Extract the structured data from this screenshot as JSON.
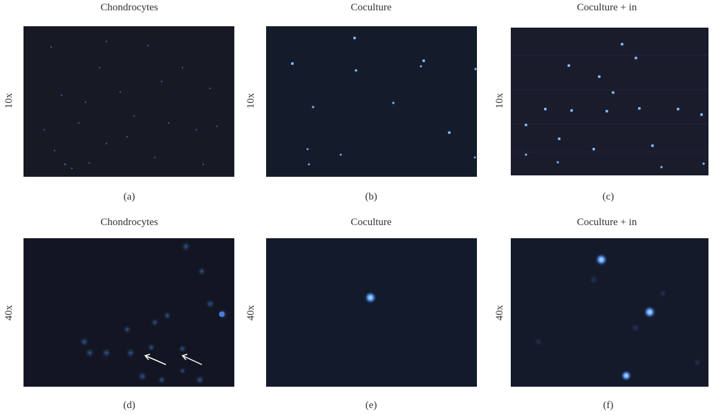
{
  "panels": [
    {
      "id": "a",
      "title": "Chondrocytes",
      "magnification": "10x",
      "caption": "(a)",
      "bg": "#171a24"
    },
    {
      "id": "b",
      "title": "Coculture",
      "magnification": "10x",
      "caption": "(b)",
      "bg": "#141c2c"
    },
    {
      "id": "c",
      "title": "Coculture + in",
      "magnification": "10x",
      "caption": "(c)",
      "bg": "#1a1c2c"
    },
    {
      "id": "d",
      "title": "Chondrocytes",
      "magnification": "40x",
      "caption": "(d)",
      "bg": "#131622"
    },
    {
      "id": "e",
      "title": "Coculture",
      "magnification": "40x",
      "caption": "(e)",
      "bg": "#131a2c"
    },
    {
      "id": "f",
      "title": "Coculture + in",
      "magnification": "40x",
      "caption": "(f)",
      "bg": "#151a2a"
    }
  ],
  "colors": {
    "nucleus": "#7fb8ff",
    "nucleus_dim": "#2b4f8a",
    "arrow": "#ffffff"
  }
}
